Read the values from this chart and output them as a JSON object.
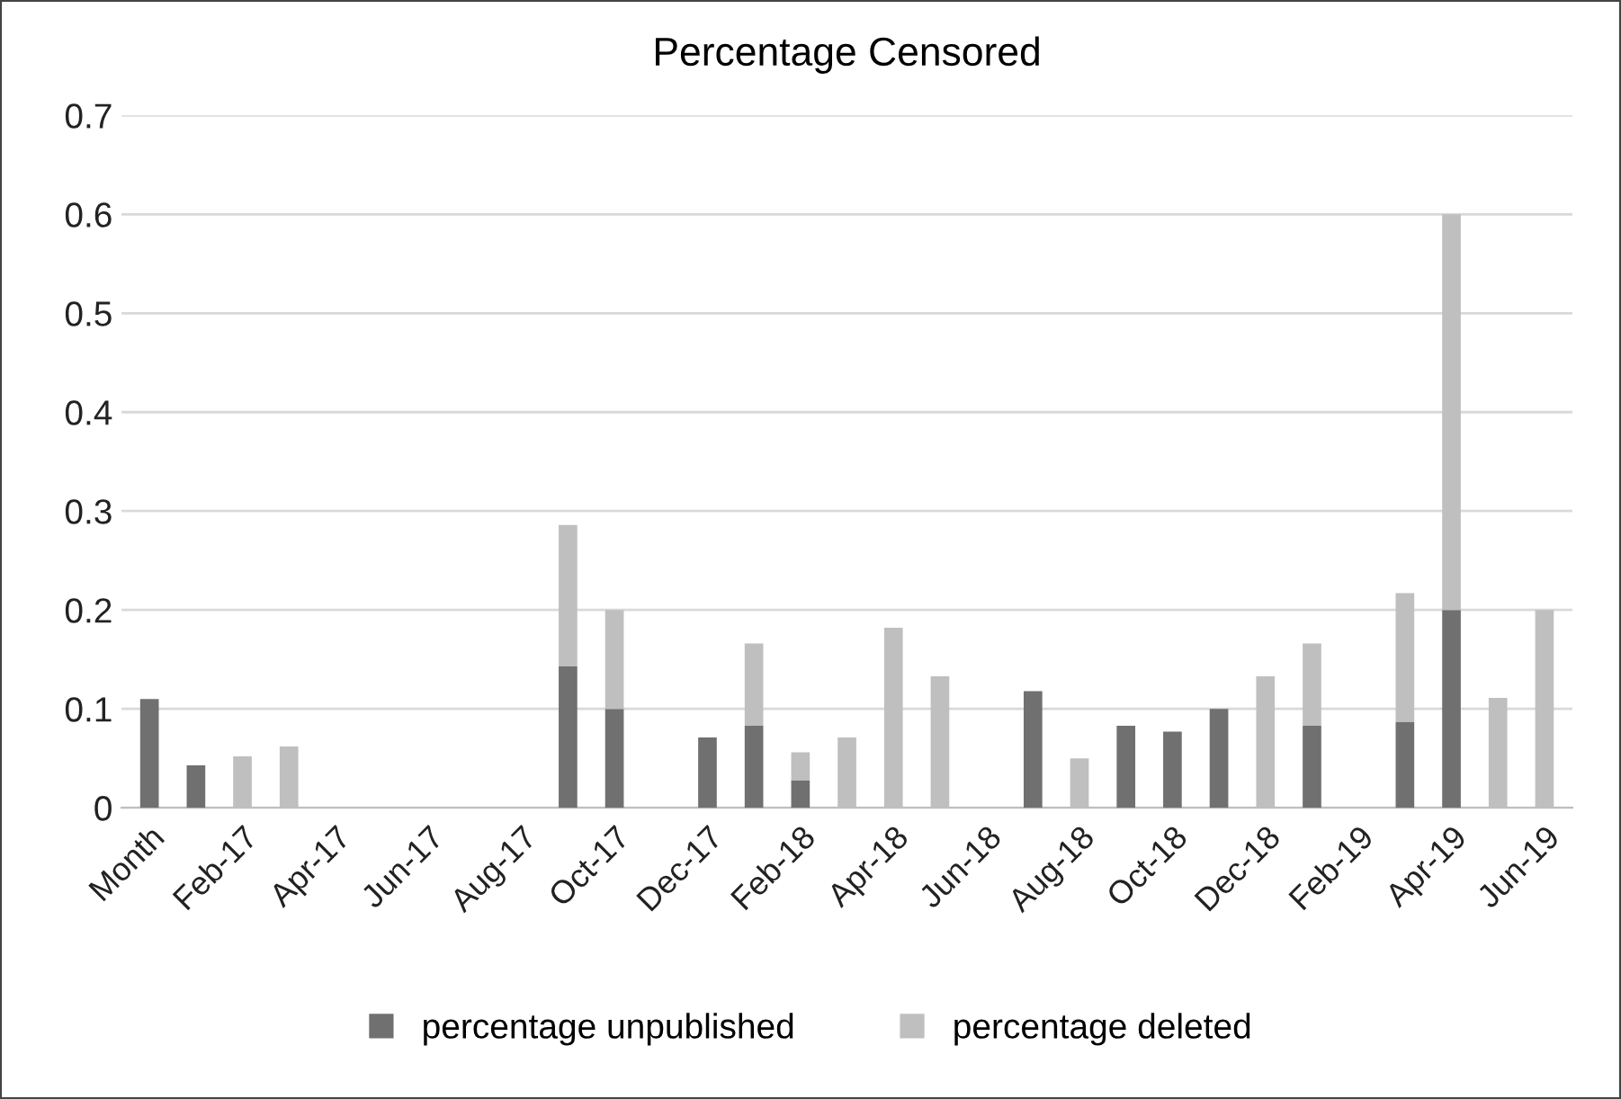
{
  "chart_data": {
    "type": "bar",
    "title": "Percentage Censored",
    "stacked": true,
    "categories": [
      "Month",
      null,
      "Feb-17",
      null,
      "Apr-17",
      null,
      "Jun-17",
      null,
      "Aug-17",
      null,
      "Oct-17",
      null,
      "Dec-17",
      null,
      "Feb-18",
      null,
      "Apr-18",
      null,
      "Jun-18",
      null,
      "Aug-18",
      null,
      "Oct-18",
      null,
      "Dec-18",
      null,
      "Feb-19",
      null,
      "Apr-19",
      null,
      "Jun-19"
    ],
    "series": [
      {
        "name": "percentage unpublished",
        "color": "#707070",
        "values": [
          0.11,
          0.043,
          0,
          0,
          0,
          0,
          0,
          0,
          0,
          0.143,
          0.1,
          0,
          0.071,
          0.083,
          0.028,
          0,
          0,
          0,
          0,
          0.118,
          0,
          0.083,
          0.077,
          0.1,
          0,
          0.083,
          0,
          0.087,
          0.2,
          0,
          0
        ]
      },
      {
        "name": "percentage deleted",
        "color": "#bfbfbf",
        "values": [
          0,
          0,
          0.052,
          0.062,
          0,
          0,
          0,
          0,
          0,
          0.143,
          0.1,
          0,
          0,
          0.083,
          0.028,
          0.071,
          0.182,
          0.133,
          0,
          0,
          0.05,
          0,
          0,
          0,
          0.133,
          0.083,
          0,
          0.13,
          0.4,
          0.111,
          0.2
        ]
      }
    ],
    "ylim": [
      0,
      0.7
    ],
    "yticks": [
      {
        "value": 0,
        "label": "0"
      },
      0.1,
      0.2,
      0.3,
      0.4,
      0.5,
      0.6,
      0.7
    ],
    "grid": "y",
    "legend": "bottom"
  }
}
